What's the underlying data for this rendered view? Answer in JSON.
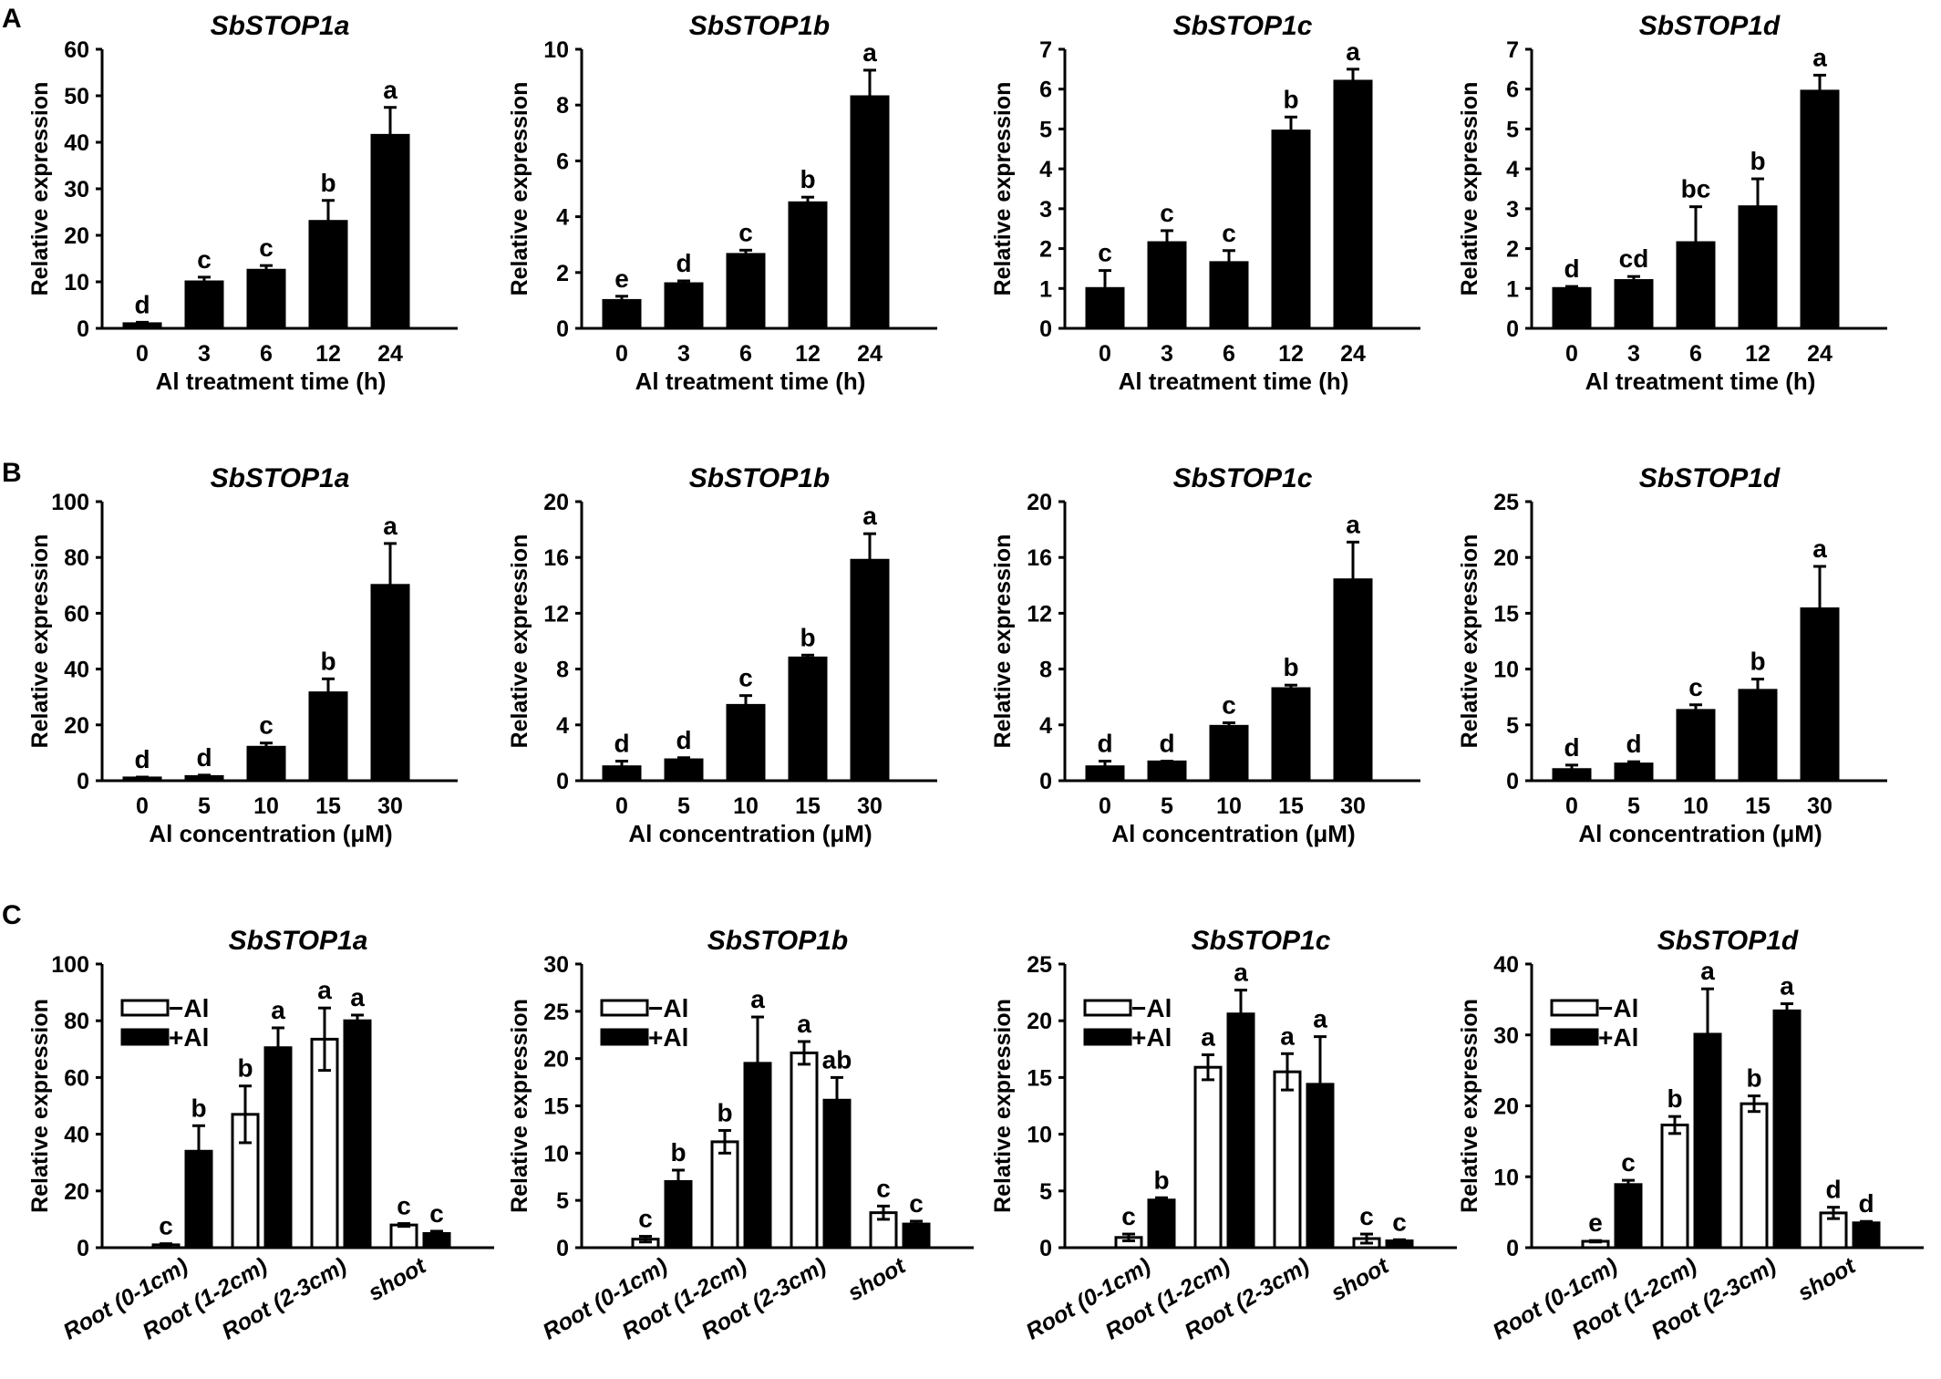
{
  "panel_labels": [
    "A",
    "B",
    "C"
  ],
  "chart_data": [
    {
      "type": "bar",
      "row": 0,
      "title": "SbSTOP1a",
      "xlabel": "Al treatment time (h)",
      "ylabel": "Relative expression",
      "ylim": [
        0,
        60
      ],
      "yticks": [
        0,
        10,
        20,
        30,
        40,
        50,
        60
      ],
      "categories": [
        "0",
        "3",
        "6",
        "12",
        "24"
      ],
      "series": [
        {
          "name": "",
          "values": [
            1,
            10,
            12.5,
            23,
            41.5
          ],
          "errors": [
            0.3,
            1,
            1,
            4.5,
            6
          ],
          "letters": [
            "d",
            "c",
            "c",
            "b",
            "a"
          ]
        }
      ]
    },
    {
      "type": "bar",
      "row": 0,
      "title": "SbSTOP1b",
      "xlabel": "Al treatment time (h)",
      "ylabel": "Relative expression",
      "ylim": [
        0,
        10
      ],
      "yticks": [
        0,
        2,
        4,
        6,
        8,
        10
      ],
      "categories": [
        "0",
        "3",
        "6",
        "12",
        "24"
      ],
      "series": [
        {
          "name": "",
          "values": [
            1,
            1.6,
            2.65,
            4.5,
            8.3
          ],
          "errors": [
            0.15,
            0.1,
            0.15,
            0.2,
            0.95
          ],
          "letters": [
            "e",
            "d",
            "c",
            "b",
            "a"
          ]
        }
      ]
    },
    {
      "type": "bar",
      "row": 0,
      "title": "SbSTOP1c",
      "xlabel": "Al treatment time (h)",
      "ylabel": "Relative expression",
      "ylim": [
        0,
        7
      ],
      "yticks": [
        0,
        1,
        2,
        3,
        4,
        5,
        6,
        7
      ],
      "categories": [
        "0",
        "3",
        "6",
        "12",
        "24"
      ],
      "series": [
        {
          "name": "",
          "values": [
            1,
            2.15,
            1.65,
            4.95,
            6.2
          ],
          "errors": [
            0.45,
            0.3,
            0.3,
            0.35,
            0.3
          ],
          "letters": [
            "c",
            "c",
            "c",
            "b",
            "a"
          ]
        }
      ]
    },
    {
      "type": "bar",
      "row": 0,
      "title": "SbSTOP1d",
      "xlabel": "Al treatment time (h)",
      "ylabel": "Relative expression",
      "ylim": [
        0,
        7
      ],
      "yticks": [
        0,
        1,
        2,
        3,
        4,
        5,
        6,
        7
      ],
      "categories": [
        "0",
        "3",
        "6",
        "12",
        "24"
      ],
      "series": [
        {
          "name": "",
          "values": [
            1,
            1.2,
            2.15,
            3.05,
            5.95
          ],
          "errors": [
            0.05,
            0.1,
            0.9,
            0.7,
            0.4
          ],
          "letters": [
            "d",
            "cd",
            "bc",
            "b",
            "a"
          ]
        }
      ]
    },
    {
      "type": "bar",
      "row": 1,
      "title": "SbSTOP1a",
      "xlabel": "Al concentration (μM)",
      "ylabel": "Relative expression",
      "ylim": [
        0,
        100
      ],
      "yticks": [
        0,
        20,
        40,
        60,
        80,
        100
      ],
      "categories": [
        "0",
        "5",
        "10",
        "15",
        "30"
      ],
      "series": [
        {
          "name": "",
          "values": [
            1,
            1.5,
            12,
            31.5,
            70
          ],
          "errors": [
            0.3,
            0.5,
            1.5,
            5,
            15
          ],
          "letters": [
            "d",
            "d",
            "c",
            "b",
            "a"
          ]
        }
      ]
    },
    {
      "type": "bar",
      "row": 1,
      "title": "SbSTOP1b",
      "xlabel": "Al concentration (μM)",
      "ylabel": "Relative expression",
      "ylim": [
        0,
        20
      ],
      "yticks": [
        0,
        4,
        8,
        12,
        16,
        20
      ],
      "categories": [
        "0",
        "5",
        "10",
        "15",
        "30"
      ],
      "series": [
        {
          "name": "",
          "values": [
            1,
            1.5,
            5.4,
            8.8,
            15.8
          ],
          "errors": [
            0.4,
            0.15,
            0.7,
            0.2,
            1.9
          ],
          "letters": [
            "d",
            "d",
            "c",
            "b",
            "a"
          ]
        }
      ]
    },
    {
      "type": "bar",
      "row": 1,
      "title": "SbSTOP1c",
      "xlabel": "Al concentration (μM)",
      "ylabel": "Relative expression",
      "ylim": [
        0,
        20
      ],
      "yticks": [
        0,
        4,
        8,
        12,
        16,
        20
      ],
      "categories": [
        "0",
        "5",
        "10",
        "15",
        "30"
      ],
      "series": [
        {
          "name": "",
          "values": [
            1,
            1.35,
            3.9,
            6.6,
            14.4
          ],
          "errors": [
            0.4,
            0.05,
            0.25,
            0.25,
            2.7
          ],
          "letters": [
            "d",
            "d",
            "c",
            "b",
            "a"
          ]
        }
      ]
    },
    {
      "type": "bar",
      "row": 1,
      "title": "SbSTOP1d",
      "xlabel": "Al concentration (μM)",
      "ylabel": "Relative expression",
      "ylim": [
        0,
        25
      ],
      "yticks": [
        0,
        5,
        10,
        15,
        20,
        25
      ],
      "categories": [
        "0",
        "5",
        "10",
        "15",
        "30"
      ],
      "series": [
        {
          "name": "",
          "values": [
            1,
            1.5,
            6.3,
            8.1,
            15.4
          ],
          "errors": [
            0.4,
            0.2,
            0.5,
            1,
            3.8
          ],
          "letters": [
            "d",
            "d",
            "c",
            "b",
            "a"
          ]
        }
      ]
    },
    {
      "type": "bar",
      "row": 2,
      "title": "SbSTOP1a",
      "xlabel": "",
      "ylabel": "Relative expression",
      "ylim": [
        0,
        100
      ],
      "yticks": [
        0,
        20,
        40,
        60,
        80,
        100
      ],
      "categories": [
        "Root (0-1cm)",
        "Root (1-2cm)",
        "Root (2-3cm)",
        "shoot"
      ],
      "legend": [
        "−Al",
        "+Al"
      ],
      "series": [
        {
          "name": "−Al",
          "values": [
            1,
            47,
            73.5,
            8
          ],
          "errors": [
            0.4,
            10,
            11,
            0.5
          ],
          "letters": [
            "c",
            "b",
            "a",
            "c"
          ]
        },
        {
          "name": "+Al",
          "values": [
            34,
            70.5,
            80,
            5
          ],
          "errors": [
            9,
            7,
            2,
            0.8
          ],
          "letters": [
            "b",
            "a",
            "a",
            "c"
          ]
        }
      ]
    },
    {
      "type": "bar",
      "row": 2,
      "title": "SbSTOP1b",
      "xlabel": "",
      "ylabel": "Relative expression",
      "ylim": [
        0,
        30
      ],
      "yticks": [
        0,
        5,
        10,
        15,
        20,
        25,
        30
      ],
      "categories": [
        "Root (0-1cm)",
        "Root (1-2cm)",
        "Root (2-3cm)",
        "shoot"
      ],
      "legend": [
        "−Al",
        "+Al"
      ],
      "series": [
        {
          "name": "−Al",
          "values": [
            0.9,
            11.2,
            20.6,
            3.7
          ],
          "errors": [
            0.3,
            1.2,
            1.2,
            0.7
          ],
          "letters": [
            "c",
            "b",
            "a",
            "c"
          ]
        },
        {
          "name": "+Al",
          "values": [
            7,
            19.5,
            15.6,
            2.5
          ],
          "errors": [
            1.2,
            4.9,
            2.4,
            0.3
          ],
          "letters": [
            "b",
            "a",
            "ab",
            "c"
          ]
        }
      ]
    },
    {
      "type": "bar",
      "row": 2,
      "title": "SbSTOP1c",
      "xlabel": "",
      "ylabel": "Relative expression",
      "ylim": [
        0,
        25
      ],
      "yticks": [
        0,
        5,
        10,
        15,
        20,
        25
      ],
      "categories": [
        "Root (0-1cm)",
        "Root (1-2cm)",
        "Root (2-3cm)",
        "shoot"
      ],
      "legend": [
        "−Al",
        "+Al"
      ],
      "series": [
        {
          "name": "−Al",
          "values": [
            0.9,
            15.9,
            15.5,
            0.8
          ],
          "errors": [
            0.3,
            1.1,
            1.6,
            0.4
          ],
          "letters": [
            "c",
            "a",
            "a",
            "c"
          ]
        },
        {
          "name": "+Al",
          "values": [
            4.2,
            20.6,
            14.4,
            0.6
          ],
          "errors": [
            0.2,
            2.1,
            4.2,
            0.1
          ],
          "letters": [
            "b",
            "a",
            "a",
            "c"
          ]
        }
      ]
    },
    {
      "type": "bar",
      "row": 2,
      "title": "SbSTOP1d",
      "xlabel": "",
      "ylabel": "Relative expression",
      "ylim": [
        0,
        40
      ],
      "yticks": [
        0,
        10,
        20,
        30,
        40
      ],
      "categories": [
        "Root (0-1cm)",
        "Root (1-2cm)",
        "Root (2-3cm)",
        "shoot"
      ],
      "legend": [
        "−Al",
        "+Al"
      ],
      "series": [
        {
          "name": "−Al",
          "values": [
            0.9,
            17.3,
            20.3,
            4.9
          ],
          "errors": [
            0.1,
            1.2,
            1.1,
            0.8
          ],
          "letters": [
            "e",
            "b",
            "b",
            "d"
          ]
        },
        {
          "name": "+Al",
          "values": [
            8.9,
            30.1,
            33.4,
            3.5
          ],
          "errors": [
            0.6,
            6.4,
            1,
            0.2
          ],
          "letters": [
            "c",
            "a",
            "a",
            "d"
          ]
        }
      ]
    }
  ]
}
